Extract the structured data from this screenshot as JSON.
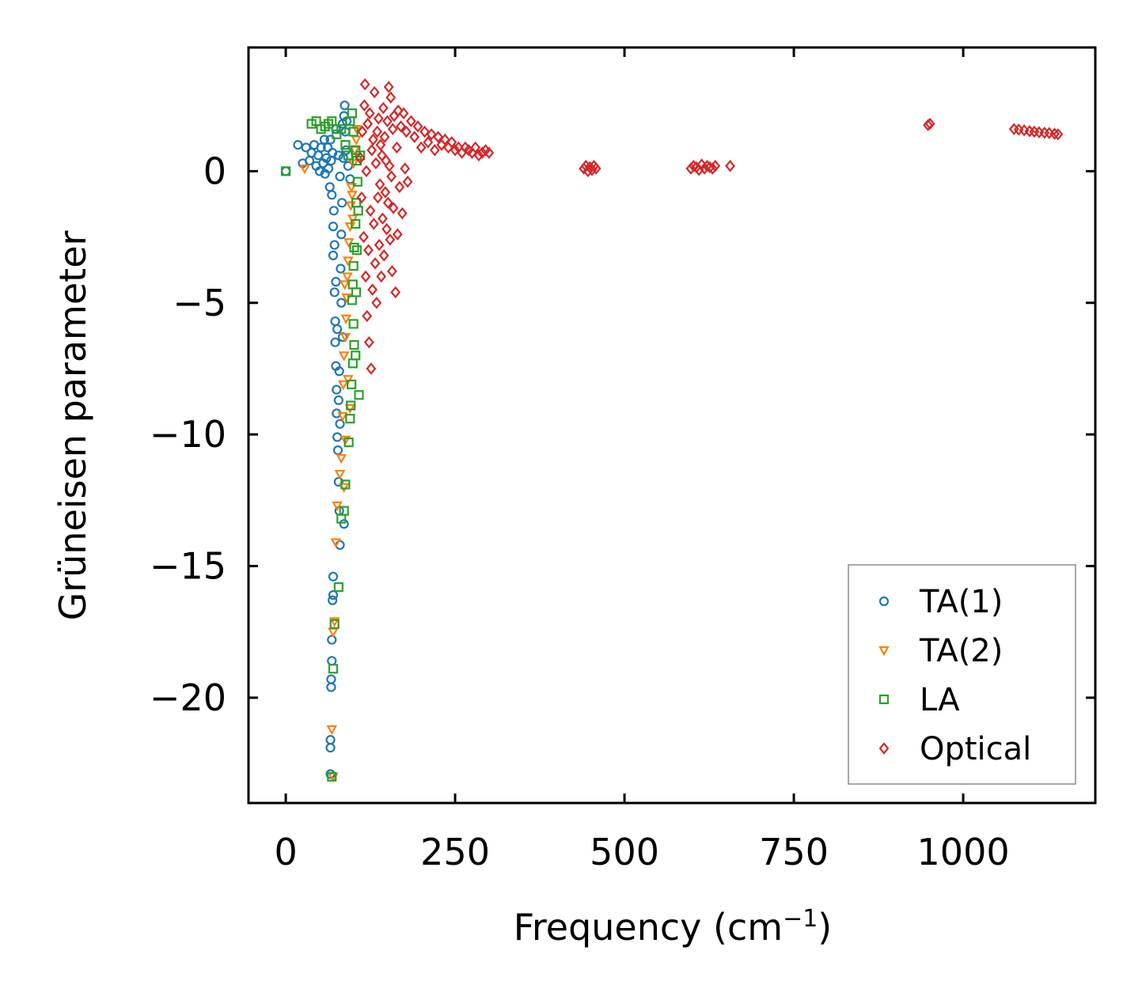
{
  "chart_data": {
    "type": "scatter",
    "xlabel": "Frequency (cm",
    "xlabel_superscript": "−1",
    "xlabel_suffix": ")",
    "ylabel": "Grüneisen parameter",
    "xlim": [
      -55,
      1195
    ],
    "ylim": [
      -24,
      4.7
    ],
    "x_ticks": [
      0,
      250,
      500,
      750,
      1000
    ],
    "x_tick_labels": [
      "0",
      "250",
      "500",
      "750",
      "1000"
    ],
    "y_ticks": [
      0,
      -5,
      -10,
      -15,
      -20
    ],
    "y_tick_labels": [
      "0",
      "−5",
      "−10",
      "−15",
      "−20"
    ],
    "grid": false,
    "legend_position": "lower-right",
    "series": [
      {
        "name": "TA(1)",
        "marker": "circle",
        "color": "#1f77b4",
        "points": [
          [
            0,
            0.0
          ],
          [
            18,
            1.0
          ],
          [
            25,
            0.3
          ],
          [
            30,
            0.9
          ],
          [
            35,
            0.4
          ],
          [
            38,
            0.7
          ],
          [
            42,
            1.0
          ],
          [
            45,
            0.2
          ],
          [
            48,
            0.6
          ],
          [
            50,
            0.0
          ],
          [
            52,
            0.9
          ],
          [
            55,
            0.3
          ],
          [
            57,
            1.2
          ],
          [
            58,
            -0.1
          ],
          [
            60,
            0.5
          ],
          [
            62,
            0.9
          ],
          [
            63,
            0.1
          ],
          [
            65,
            -0.6
          ],
          [
            66,
            1.2
          ],
          [
            67,
            0.4
          ],
          [
            68,
            -0.9
          ],
          [
            69,
            0.7
          ],
          [
            70,
            -2.1
          ],
          [
            70,
            -3.2
          ],
          [
            71,
            -1.5
          ],
          [
            72,
            -2.8
          ],
          [
            72,
            -4.6
          ],
          [
            73,
            -5.7
          ],
          [
            73,
            -6.5
          ],
          [
            74,
            -4.2
          ],
          [
            74,
            -7.4
          ],
          [
            75,
            -8.3
          ],
          [
            75,
            -9.2
          ],
          [
            76,
            -6.0
          ],
          [
            76,
            -10.1
          ],
          [
            77,
            -10.6
          ],
          [
            78,
            -8.7
          ],
          [
            78,
            -11.8
          ],
          [
            79,
            -12.9
          ],
          [
            79,
            -7.6
          ],
          [
            80,
            -9.6
          ],
          [
            80,
            -14.2
          ],
          [
            81,
            -3.7
          ],
          [
            82,
            -5.0
          ],
          [
            82,
            -2.4
          ],
          [
            83,
            -1.2
          ],
          [
            84,
            1.8
          ],
          [
            84,
            -6.3
          ],
          [
            85,
            0.5
          ],
          [
            86,
            2.1
          ],
          [
            86,
            -13.4
          ],
          [
            87,
            2.5
          ],
          [
            88,
            1.5
          ],
          [
            89,
            0.8
          ],
          [
            90,
            1.9
          ],
          [
            92,
            0.2
          ],
          [
            95,
            -0.3
          ],
          [
            78,
            0.6
          ],
          [
            80,
            -0.2
          ],
          [
            74,
            1.6
          ],
          [
            70,
            -15.4
          ],
          [
            70,
            -16.1
          ],
          [
            69,
            -16.3
          ],
          [
            68,
            -17.8
          ],
          [
            68,
            -18.6
          ],
          [
            67,
            -19.3
          ],
          [
            67,
            -19.6
          ],
          [
            66,
            -21.6
          ],
          [
            66,
            -21.9
          ],
          [
            66,
            -22.9
          ]
        ]
      },
      {
        "name": "TA(2)",
        "marker": "triangle-down",
        "color": "#ff7f0e",
        "points": [
          [
            28,
            0.1
          ],
          [
            70,
            -23.0
          ],
          [
            68,
            -21.2
          ],
          [
            70,
            -17.5
          ],
          [
            72,
            -17.1
          ],
          [
            74,
            -14.1
          ],
          [
            76,
            -12.7
          ],
          [
            80,
            -11.5
          ],
          [
            82,
            -10.9
          ],
          [
            84,
            -9.3
          ],
          [
            85,
            -8.1
          ],
          [
            86,
            -7.0
          ],
          [
            88,
            -6.3
          ],
          [
            89,
            -5.6
          ],
          [
            90,
            -4.8
          ],
          [
            91,
            -4.0
          ],
          [
            92,
            -3.4
          ],
          [
            93,
            -2.7
          ],
          [
            95,
            -2.1
          ],
          [
            96,
            -1.3
          ],
          [
            97,
            -0.6
          ],
          [
            98,
            -0.9
          ],
          [
            100,
            0.3
          ],
          [
            102,
            0.8
          ],
          [
            104,
            1.2
          ],
          [
            105,
            1.6
          ],
          [
            87,
            -4.3
          ],
          [
            92,
            -7.9
          ],
          [
            95,
            -9.0
          ],
          [
            99,
            -1.8
          ],
          [
            88,
            -10.2
          ],
          [
            86,
            -12.0
          ]
        ]
      },
      {
        "name": "LA",
        "marker": "square",
        "color": "#2ca02c",
        "points": [
          [
            0,
            0.0
          ],
          [
            38,
            1.8
          ],
          [
            45,
            1.9
          ],
          [
            52,
            1.6
          ],
          [
            58,
            1.7
          ],
          [
            63,
            1.8
          ],
          [
            68,
            1.9
          ],
          [
            75,
            1.4
          ],
          [
            82,
            1.6
          ],
          [
            88,
            1.0
          ],
          [
            92,
            0.6
          ],
          [
            95,
            1.9
          ],
          [
            98,
            2.2
          ],
          [
            100,
            1.5
          ],
          [
            103,
            0.8
          ],
          [
            105,
            0.4
          ],
          [
            106,
            -0.4
          ],
          [
            104,
            -1.2
          ],
          [
            103,
            -2.0
          ],
          [
            101,
            -2.9
          ],
          [
            100,
            -3.6
          ],
          [
            99,
            -4.3
          ],
          [
            98,
            -4.9
          ],
          [
            100,
            -5.8
          ],
          [
            101,
            -6.6
          ],
          [
            99,
            -7.3
          ],
          [
            97,
            -8.1
          ],
          [
            96,
            -8.9
          ],
          [
            95,
            -9.4
          ],
          [
            93,
            -10.3
          ],
          [
            88,
            -11.9
          ],
          [
            86,
            -12.9
          ],
          [
            82,
            -13.2
          ],
          [
            78,
            -15.8
          ],
          [
            72,
            -17.2
          ],
          [
            70,
            -18.9
          ],
          [
            68,
            -23.0
          ],
          [
            110,
            0.6
          ],
          [
            107,
            -1.5
          ],
          [
            105,
            -3.0
          ],
          [
            104,
            -4.6
          ],
          [
            103,
            -7.0
          ],
          [
            108,
            -8.5
          ]
        ]
      },
      {
        "name": "Optical",
        "marker": "diamond",
        "color": "#d62728",
        "points": [
          [
            110,
            0.5
          ],
          [
            112,
            -1.0
          ],
          [
            113,
            1.5
          ],
          [
            115,
            -2.5
          ],
          [
            116,
            2.5
          ],
          [
            117,
            3.3
          ],
          [
            118,
            -4.0
          ],
          [
            119,
            0.0
          ],
          [
            120,
            -5.5
          ],
          [
            121,
            1.8
          ],
          [
            122,
            -3.0
          ],
          [
            123,
            -6.5
          ],
          [
            124,
            2.2
          ],
          [
            125,
            -1.5
          ],
          [
            126,
            -7.5
          ],
          [
            127,
            0.8
          ],
          [
            128,
            -4.5
          ],
          [
            129,
            1.2
          ],
          [
            130,
            -2.0
          ],
          [
            131,
            3.0
          ],
          [
            132,
            -3.5
          ],
          [
            133,
            0.3
          ],
          [
            134,
            -5.0
          ],
          [
            135,
            1.5
          ],
          [
            136,
            -1.0
          ],
          [
            137,
            2.0
          ],
          [
            138,
            -2.8
          ],
          [
            139,
            -0.5
          ],
          [
            140,
            1.0
          ],
          [
            141,
            -4.0
          ],
          [
            142,
            0.6
          ],
          [
            143,
            -1.8
          ],
          [
            144,
            2.4
          ],
          [
            145,
            -3.2
          ],
          [
            146,
            1.3
          ],
          [
            147,
            -0.8
          ],
          [
            148,
            0.4
          ],
          [
            149,
            -2.2
          ],
          [
            150,
            1.9
          ],
          [
            151,
            -1.2
          ],
          [
            152,
            3.2
          ],
          [
            153,
            0.2
          ],
          [
            154,
            -2.6
          ],
          [
            155,
            2.8
          ],
          [
            156,
            -0.2
          ],
          [
            157,
            -3.8
          ],
          [
            158,
            1.6
          ],
          [
            159,
            -1.4
          ],
          [
            160,
            2.1
          ],
          [
            162,
            -4.6
          ],
          [
            164,
            0.9
          ],
          [
            165,
            -2.4
          ],
          [
            166,
            2.3
          ],
          [
            168,
            -0.6
          ],
          [
            170,
            1.7
          ],
          [
            172,
            -1.6
          ],
          [
            174,
            2.2
          ],
          [
            176,
            0.1
          ],
          [
            178,
            1.5
          ],
          [
            180,
            -0.4
          ],
          [
            185,
            1.9
          ],
          [
            190,
            1.3
          ],
          [
            195,
            1.7
          ],
          [
            200,
            0.9
          ],
          [
            205,
            1.5
          ],
          [
            210,
            1.1
          ],
          [
            215,
            1.4
          ],
          [
            220,
            0.8
          ],
          [
            225,
            1.3
          ],
          [
            230,
            1.0
          ],
          [
            235,
            1.2
          ],
          [
            240,
            0.9
          ],
          [
            245,
            1.1
          ],
          [
            250,
            0.8
          ],
          [
            255,
            0.9
          ],
          [
            260,
            0.7
          ],
          [
            265,
            0.9
          ],
          [
            270,
            0.8
          ],
          [
            275,
            0.7
          ],
          [
            280,
            0.9
          ],
          [
            285,
            0.6
          ],
          [
            290,
            0.7
          ],
          [
            295,
            0.8
          ],
          [
            300,
            0.7
          ],
          [
            440,
            0.1
          ],
          [
            443,
            0.2
          ],
          [
            446,
            0.0
          ],
          [
            449,
            0.15
          ],
          [
            452,
            0.05
          ],
          [
            455,
            0.2
          ],
          [
            458,
            0.1
          ],
          [
            598,
            0.1
          ],
          [
            602,
            0.2
          ],
          [
            606,
            0.15
          ],
          [
            610,
            0.05
          ],
          [
            614,
            0.25
          ],
          [
            618,
            0.1
          ],
          [
            622,
            0.2
          ],
          [
            626,
            0.15
          ],
          [
            630,
            0.1
          ],
          [
            634,
            0.2
          ],
          [
            656,
            0.2
          ],
          [
            948,
            1.75
          ],
          [
            951,
            1.8
          ],
          [
            1075,
            1.6
          ],
          [
            1082,
            1.58
          ],
          [
            1090,
            1.55
          ],
          [
            1098,
            1.52
          ],
          [
            1105,
            1.5
          ],
          [
            1112,
            1.48
          ],
          [
            1120,
            1.46
          ],
          [
            1127,
            1.45
          ],
          [
            1135,
            1.42
          ],
          [
            1140,
            1.4
          ]
        ]
      }
    ]
  }
}
